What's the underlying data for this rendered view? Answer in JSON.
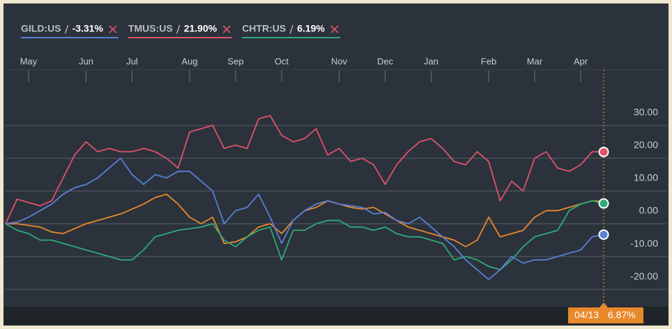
{
  "chart_data": {
    "type": "line",
    "categories": [
      null,
      null,
      "May",
      null,
      null,
      null,
      null,
      "Jun",
      null,
      null,
      null,
      "Jul",
      null,
      null,
      null,
      null,
      "Aug",
      null,
      null,
      null,
      "Sep",
      null,
      null,
      null,
      "Oct",
      null,
      null,
      null,
      null,
      "Nov",
      null,
      null,
      null,
      "Dec",
      null,
      null,
      null,
      "Jan",
      null,
      null,
      null,
      null,
      "Feb",
      null,
      null,
      null,
      "Mar",
      null,
      null,
      null,
      "Apr",
      null,
      null
    ],
    "series": [
      {
        "name": "GILD:US",
        "legend_value": -3.31,
        "legend_label": "-3.31%",
        "color": "#5b7fd8",
        "values": [
          0,
          0.5,
          2,
          4,
          6,
          9,
          11,
          12,
          14,
          17,
          20,
          15,
          12,
          15,
          14,
          16,
          16,
          13,
          10,
          0,
          4,
          5,
          9,
          2,
          -6,
          1,
          4,
          6,
          7,
          6,
          5.5,
          5,
          3,
          3.5,
          1,
          0,
          2,
          -1,
          -4,
          -7,
          -11,
          -14,
          -17,
          -14,
          -10,
          -12,
          -11,
          -11,
          -10,
          -9,
          -8,
          -4,
          -3.31
        ]
      },
      {
        "name": "TMUS:US",
        "legend_value": 21.9,
        "legend_label": "21.90%",
        "color": "#e0526a",
        "values": [
          0,
          7.5,
          6.5,
          5.5,
          7,
          14,
          21,
          25,
          22,
          23,
          22,
          22,
          23,
          22,
          20,
          17,
          28,
          29,
          30,
          23,
          24,
          23,
          32,
          33,
          27,
          25,
          26,
          29,
          21,
          23,
          19,
          20,
          18,
          12,
          18,
          22,
          25,
          26,
          23,
          19,
          18,
          22,
          19,
          7,
          13,
          10,
          20,
          22,
          17,
          16,
          18,
          22,
          21.9
        ]
      },
      {
        "name": "CHTR:US",
        "legend_value": 6.19,
        "legend_label": "6.19%",
        "color": "#2daa7a",
        "values": [
          0,
          -2,
          -3,
          -5,
          -5,
          -6,
          -7,
          -8,
          -9,
          -10,
          -11,
          -11,
          -8,
          -4,
          -3,
          -2,
          -1.5,
          -1,
          0,
          -5,
          -7,
          -4,
          -2,
          -1,
          -11,
          -2,
          -2,
          0,
          1,
          1,
          -1,
          -1,
          -2,
          -1,
          -3,
          -4,
          -4,
          -5,
          -6,
          -11,
          -10,
          -11,
          -13,
          -14,
          -11,
          -7,
          -4,
          -3,
          -2,
          4,
          6,
          7,
          6.19
        ]
      },
      {
        "color": "#e8892b",
        "values": [
          0,
          0,
          -0.5,
          -1,
          -2.5,
          -3,
          -1.5,
          0,
          1,
          2,
          3,
          4.5,
          6,
          8,
          9,
          6,
          2,
          0,
          2,
          -6,
          -5.5,
          -4,
          -1,
          0,
          -3,
          1,
          4,
          5,
          7,
          6,
          5,
          4.5,
          5,
          3,
          1,
          -1,
          -2,
          -3,
          -4,
          -5,
          -7,
          -5,
          2,
          -4,
          -3,
          -2,
          2,
          4,
          4,
          5,
          6,
          7,
          6.87
        ]
      }
    ],
    "cursor": {
      "label": "04/13",
      "value": 6.87,
      "value_label": "6.87%",
      "color": "#e8892b"
    },
    "ylim": [
      -25.3,
      47
    ],
    "yticks": [
      {
        "value": 30,
        "label": "30.00"
      },
      {
        "value": 20,
        "label": "20.00"
      },
      {
        "value": 10,
        "label": "10.00"
      },
      {
        "value": 0,
        "label": "0.00"
      },
      {
        "value": -10,
        "label": "-10.00"
      },
      {
        "value": -20,
        "label": "-20.00"
      }
    ],
    "grid": true
  }
}
